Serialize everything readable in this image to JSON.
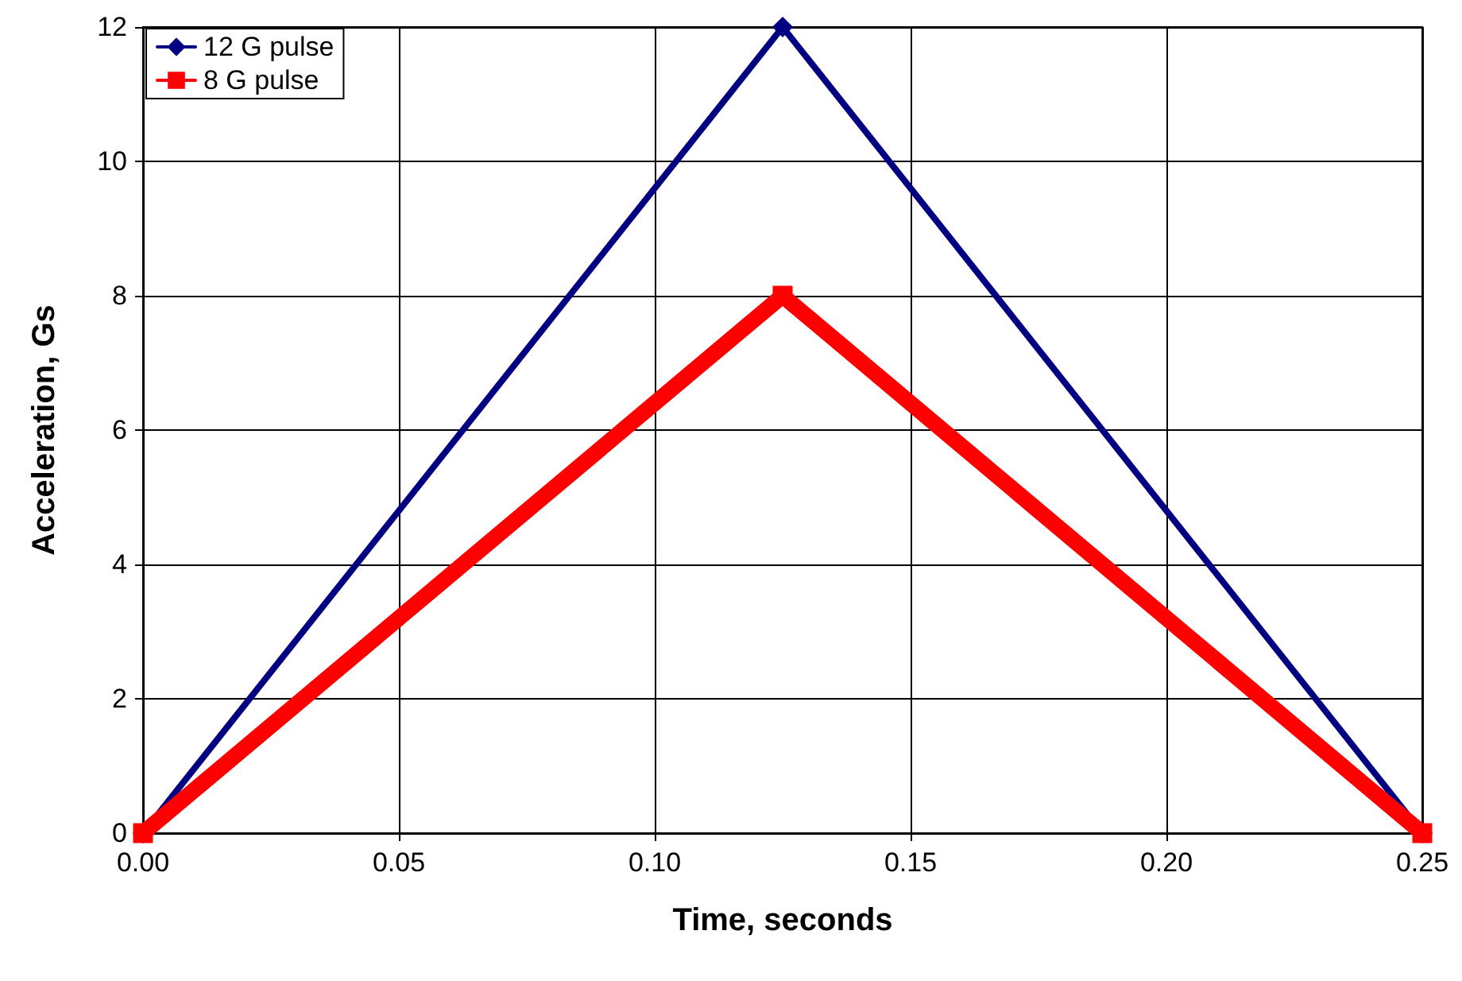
{
  "chart_data": {
    "type": "line",
    "xlabel": "Time, seconds",
    "ylabel": "Acceleration, Gs",
    "x": [
      0,
      0.125,
      0.25
    ],
    "series": [
      {
        "name": "12 G pulse",
        "color": "#000080",
        "marker": "diamond",
        "values": [
          0,
          12,
          0
        ]
      },
      {
        "name": "8 G pulse",
        "color": "#ff0000",
        "marker": "square",
        "values": [
          0,
          8,
          0
        ]
      }
    ],
    "xlim": [
      0,
      0.25
    ],
    "xticks": [
      {
        "value": 0,
        "label": "0.00"
      },
      {
        "value": 0.05,
        "label": "0.05"
      },
      {
        "value": 0.1,
        "label": "0.10"
      },
      {
        "value": 0.15,
        "label": "0.15"
      },
      {
        "value": 0.2,
        "label": "0.20"
      },
      {
        "value": 0.25,
        "label": "0.25"
      }
    ],
    "ylim": [
      0,
      12
    ],
    "yticks": [
      0,
      2,
      4,
      6,
      8,
      10,
      12
    ],
    "grid": true,
    "legend": "top left",
    "line_style": "solid"
  }
}
